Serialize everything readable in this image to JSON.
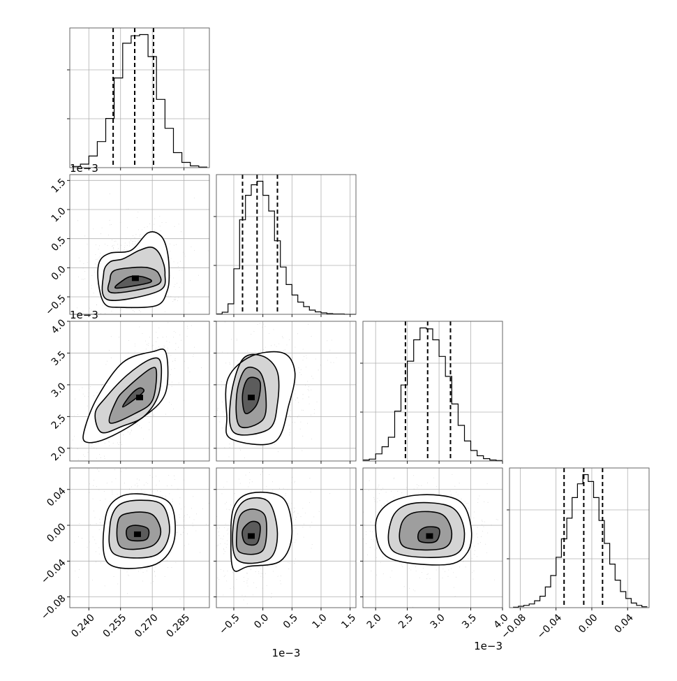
{
  "chart_data": {
    "type": "corner",
    "grid": true,
    "parameters": [
      {
        "range": [
          0.231,
          0.297
        ],
        "ticks": [
          0.24,
          0.255,
          0.27,
          0.285
        ],
        "tick_labels": [
          "0.240",
          "0.255",
          "0.270",
          "0.285"
        ],
        "quantiles": [
          0.2515,
          0.2617,
          0.2706
        ],
        "hist_edges": [
          0.232,
          0.236,
          0.24,
          0.244,
          0.248,
          0.252,
          0.256,
          0.26,
          0.264,
          0.268,
          0.272,
          0.276,
          0.28,
          0.284,
          0.288,
          0.292,
          0.296
        ],
        "hist_counts": [
          2,
          6,
          20,
          45,
          85,
          155,
          215,
          228,
          230,
          192,
          118,
          68,
          26,
          9,
          3,
          1
        ]
      },
      {
        "offset_label": "1e−3",
        "range": [
          -0.8,
          1.6
        ],
        "ticks": [
          -0.5,
          0.0,
          0.5,
          1.0,
          1.5
        ],
        "tick_labels": [
          "−0.5",
          "0.0",
          "0.5",
          "1.0",
          "1.5"
        ],
        "quantiles": [
          -0.35,
          -0.1,
          0.25
        ],
        "hist_edges": [
          -0.8,
          -0.7,
          -0.6,
          -0.5,
          -0.4,
          -0.3,
          -0.2,
          -0.1,
          0.0,
          0.1,
          0.2,
          0.3,
          0.4,
          0.5,
          0.6,
          0.7,
          0.8,
          0.9,
          1.0,
          1.1,
          1.2,
          1.3,
          1.4,
          1.5,
          1.6
        ],
        "hist_counts": [
          1,
          6,
          30,
          130,
          270,
          340,
          370,
          380,
          340,
          295,
          210,
          135,
          85,
          55,
          35,
          22,
          12,
          7,
          4,
          2,
          1,
          1,
          0,
          0
        ]
      },
      {
        "offset_label": "1e−3",
        "range": [
          1.8,
          4.0
        ],
        "ticks": [
          2.0,
          2.5,
          3.0,
          3.5,
          4.0
        ],
        "tick_labels": [
          "2.0",
          "2.5",
          "3.0",
          "3.5",
          "4.0"
        ],
        "quantiles": [
          2.47,
          2.82,
          3.18
        ],
        "hist_edges": [
          1.8,
          1.9,
          2.0,
          2.1,
          2.2,
          2.3,
          2.4,
          2.5,
          2.6,
          2.7,
          2.8,
          2.9,
          3.0,
          3.1,
          3.2,
          3.3,
          3.4,
          3.5,
          3.6,
          3.7,
          3.8,
          3.9,
          4.0
        ],
        "hist_counts": [
          2,
          4,
          15,
          30,
          50,
          105,
          160,
          210,
          255,
          280,
          278,
          255,
          220,
          178,
          120,
          75,
          42,
          22,
          11,
          5,
          2,
          1
        ]
      },
      {
        "range": [
          -0.092,
          0.064
        ],
        "ticks": [
          -0.08,
          -0.04,
          0.0,
          0.04
        ],
        "tick_labels": [
          "−0.08",
          "−0.04",
          "0.00",
          "0.04"
        ],
        "quantiles": [
          -0.031,
          -0.009,
          0.012
        ],
        "hist_edges": [
          -0.088,
          -0.082,
          -0.076,
          -0.07,
          -0.064,
          -0.058,
          -0.052,
          -0.046,
          -0.04,
          -0.034,
          -0.028,
          -0.022,
          -0.016,
          -0.01,
          -0.004,
          0.002,
          0.008,
          0.014,
          0.02,
          0.026,
          0.032,
          0.038,
          0.044,
          0.05,
          0.056,
          0.062
        ],
        "hist_counts": [
          1,
          3,
          5,
          8,
          15,
          25,
          45,
          70,
          110,
          150,
          195,
          240,
          270,
          290,
          275,
          240,
          190,
          140,
          95,
          60,
          35,
          20,
          10,
          5,
          2
        ]
      }
    ],
    "pairs": [
      {
        "row": 1,
        "col": 0,
        "center": [
          0.262,
          -0.18
        ],
        "contours": [
          [
            [
              0.253,
              -0.35
            ],
            [
              0.269,
              -0.25
            ],
            [
              0.266,
              -0.16
            ],
            [
              0.26,
              -0.15
            ],
            [
              0.256,
              -0.22
            ]
          ],
          [
            [
              0.251,
              -0.43
            ],
            [
              0.272,
              -0.3
            ],
            [
              0.273,
              -0.1
            ],
            [
              0.268,
              0.0
            ],
            [
              0.26,
              0.0
            ],
            [
              0.252,
              -0.05
            ],
            [
              0.25,
              -0.2
            ]
          ],
          [
            [
              0.249,
              -0.55
            ],
            [
              0.273,
              -0.4
            ],
            [
              0.276,
              -0.1
            ],
            [
              0.274,
              0.2
            ],
            [
              0.27,
              0.35
            ],
            [
              0.264,
              0.3
            ],
            [
              0.256,
              0.15
            ],
            [
              0.25,
              0.1
            ],
            [
              0.247,
              -0.1
            ]
          ],
          [
            [
              0.2475,
              -0.62
            ],
            [
              0.255,
              -0.68
            ],
            [
              0.272,
              -0.65
            ],
            [
              0.277,
              -0.4
            ],
            [
              0.278,
              -0.1
            ],
            [
              0.277,
              0.3
            ],
            [
              0.274,
              0.55
            ],
            [
              0.268,
              0.6
            ],
            [
              0.26,
              0.3
            ],
            [
              0.25,
              0.25
            ],
            [
              0.245,
              0.1
            ],
            [
              0.2445,
              -0.25
            ]
          ]
        ]
      },
      {
        "row": 2,
        "col": 0,
        "center": [
          0.264,
          2.8
        ],
        "contours": [
          [
            [
              0.256,
              2.65
            ],
            [
              0.262,
              2.78
            ],
            [
              0.266,
              2.9
            ],
            [
              0.264,
              2.95
            ],
            [
              0.26,
              2.85
            ]
          ],
          [
            [
              0.25,
              2.4
            ],
            [
              0.262,
              2.55
            ],
            [
              0.27,
              2.75
            ],
            [
              0.272,
              3.2
            ],
            [
              0.269,
              3.25
            ],
            [
              0.258,
              2.95
            ],
            [
              0.253,
              2.75
            ]
          ],
          [
            [
              0.246,
              2.25
            ],
            [
              0.256,
              2.35
            ],
            [
              0.266,
              2.5
            ],
            [
              0.273,
              2.85
            ],
            [
              0.274,
              3.35
            ],
            [
              0.269,
              3.4
            ],
            [
              0.258,
              3.15
            ],
            [
              0.248,
              2.8
            ],
            [
              0.243,
              2.55
            ]
          ],
          [
            [
              0.2385,
              2.1
            ],
            [
              0.248,
              2.15
            ],
            [
              0.264,
              2.45
            ],
            [
              0.276,
              2.85
            ],
            [
              0.2765,
              3.5
            ],
            [
              0.27,
              3.52
            ],
            [
              0.256,
              3.35
            ],
            [
              0.244,
              2.8
            ],
            [
              0.238,
              2.3
            ]
          ]
        ]
      },
      {
        "row": 2,
        "col": 1,
        "center": [
          -0.2,
          2.8
        ],
        "contours": [
          [
            [
              -0.3,
              2.55
            ],
            [
              -0.1,
              2.7
            ],
            [
              -0.05,
              3.05
            ],
            [
              -0.25,
              3.1
            ],
            [
              -0.35,
              2.85
            ]
          ],
          [
            [
              -0.4,
              2.35
            ],
            [
              0.0,
              2.45
            ],
            [
              0.05,
              2.85
            ],
            [
              -0.05,
              3.2
            ],
            [
              -0.3,
              3.25
            ],
            [
              -0.45,
              2.85
            ]
          ],
          [
            [
              -0.5,
              2.25
            ],
            [
              0.1,
              2.3
            ],
            [
              0.25,
              2.7
            ],
            [
              0.25,
              3.2
            ],
            [
              0.0,
              3.45
            ],
            [
              -0.35,
              3.4
            ],
            [
              -0.55,
              2.8
            ]
          ],
          [
            [
              -0.55,
              2.15
            ],
            [
              0.2,
              2.1
            ],
            [
              0.45,
              2.7
            ],
            [
              0.55,
              3.2
            ],
            [
              0.35,
              3.5
            ],
            [
              -0.2,
              3.45
            ],
            [
              -0.6,
              3.1
            ],
            [
              -0.62,
              2.5
            ]
          ]
        ]
      },
      {
        "row": 3,
        "col": 0,
        "center": [
          0.263,
          -0.01
        ],
        "contours": [
          [
            [
              0.259,
              -0.016
            ],
            [
              0.267,
              -0.016
            ],
            [
              0.268,
              -0.004
            ],
            [
              0.262,
              0.0
            ],
            [
              0.258,
              -0.004
            ]
          ],
          [
            [
              0.255,
              -0.024
            ],
            [
              0.269,
              -0.024
            ],
            [
              0.274,
              -0.008
            ],
            [
              0.27,
              0.012
            ],
            [
              0.26,
              0.014
            ],
            [
              0.254,
              0.006
            ]
          ],
          [
            [
              0.252,
              -0.032
            ],
            [
              0.271,
              -0.034
            ],
            [
              0.278,
              -0.01
            ],
            [
              0.275,
              0.022
            ],
            [
              0.264,
              0.028
            ],
            [
              0.254,
              0.022
            ],
            [
              0.25,
              0.0
            ]
          ],
          [
            [
              0.249,
              -0.042
            ],
            [
              0.27,
              -0.045
            ],
            [
              0.28,
              -0.02
            ],
            [
              0.279,
              0.022
            ],
            [
              0.268,
              0.034
            ],
            [
              0.255,
              0.032
            ],
            [
              0.248,
              0.01
            ]
          ]
        ]
      },
      {
        "row": 3,
        "col": 1,
        "center": [
          -0.2,
          -0.012
        ],
        "contours": [
          [
            [
              -0.3,
              -0.02
            ],
            [
              -0.1,
              -0.02
            ],
            [
              -0.05,
              0.0
            ],
            [
              -0.2,
              0.004
            ],
            [
              -0.35,
              -0.006
            ]
          ],
          [
            [
              -0.4,
              -0.03
            ],
            [
              0.0,
              -0.028
            ],
            [
              0.05,
              0.008
            ],
            [
              -0.15,
              0.018
            ],
            [
              -0.38,
              0.012
            ],
            [
              -0.45,
              -0.01
            ]
          ],
          [
            [
              -0.45,
              -0.038
            ],
            [
              0.1,
              -0.038
            ],
            [
              0.25,
              -0.01
            ],
            [
              0.1,
              0.026
            ],
            [
              -0.3,
              0.028
            ],
            [
              -0.5,
              0.005
            ]
          ],
          [
            [
              -0.5,
              -0.05
            ],
            [
              -0.25,
              -0.046
            ],
            [
              0.3,
              -0.04
            ],
            [
              0.5,
              -0.01
            ],
            [
              0.35,
              0.03
            ],
            [
              -0.2,
              0.036
            ],
            [
              -0.5,
              0.02
            ],
            [
              -0.55,
              -0.02
            ]
          ]
        ]
      },
      {
        "row": 3,
        "col": 2,
        "center": [
          2.85,
          -0.012
        ],
        "contours": [
          [
            [
              2.7,
              -0.018
            ],
            [
              2.95,
              -0.018
            ],
            [
              3.0,
              -0.004
            ],
            [
              2.8,
              -0.002
            ],
            [
              2.68,
              -0.008
            ]
          ],
          [
            [
              2.45,
              -0.024
            ],
            [
              3.05,
              -0.026
            ],
            [
              3.2,
              -0.01
            ],
            [
              3.05,
              0.012
            ],
            [
              2.6,
              0.014
            ],
            [
              2.4,
              0.0
            ]
          ],
          [
            [
              2.3,
              -0.03
            ],
            [
              3.2,
              -0.034
            ],
            [
              3.4,
              -0.01
            ],
            [
              3.2,
              0.02
            ],
            [
              2.55,
              0.024
            ],
            [
              2.25,
              0.006
            ]
          ],
          [
            [
              2.2,
              -0.036
            ],
            [
              3.1,
              -0.044
            ],
            [
              3.45,
              -0.03
            ],
            [
              3.5,
              0.0
            ],
            [
              3.3,
              0.028
            ],
            [
              2.7,
              0.034
            ],
            [
              2.2,
              0.024
            ],
            [
              2.0,
              0.0
            ]
          ]
        ]
      }
    ]
  }
}
